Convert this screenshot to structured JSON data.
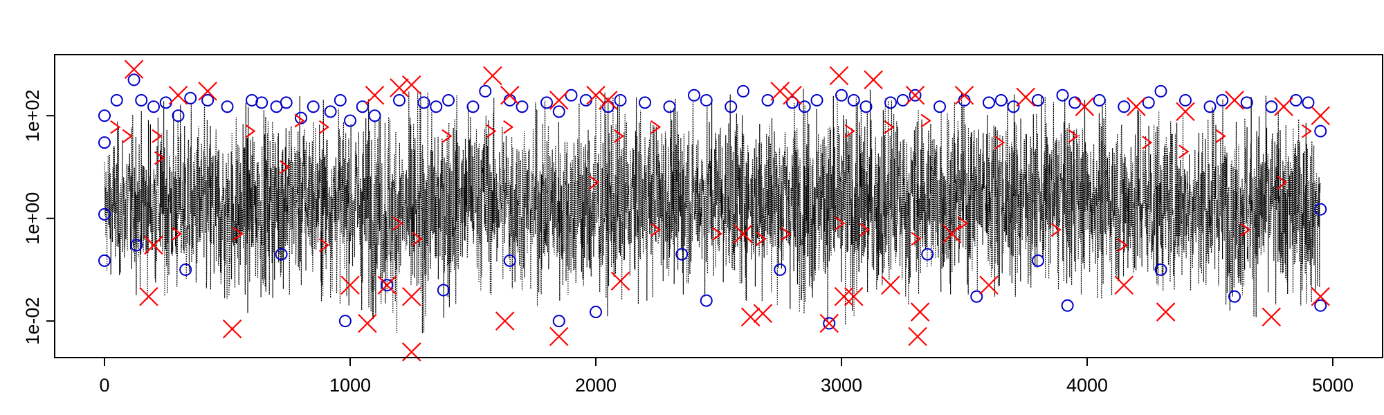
{
  "chart_data": {
    "type": "scatter",
    "title": "",
    "xlabel": "",
    "ylabel": "",
    "x_ticks": [
      "0",
      "1000",
      "2000",
      "3000",
      "4000",
      "5000"
    ],
    "x_tick_values": [
      0,
      1000,
      2000,
      3000,
      4000,
      5000
    ],
    "y_ticks": [
      "1e-02",
      "1e+00",
      "1e+02"
    ],
    "y_tick_values": [
      0.01,
      1,
      100
    ],
    "xlim": [
      -200,
      5200
    ],
    "ylim": [
      0.002,
      1500
    ],
    "y_scale": "log",
    "grid": false,
    "legend": "none",
    "n_points": 4950,
    "series": [
      {
        "name": "trace",
        "style": "dotted line",
        "color": "#000000",
        "envelope_note": "dense dotted black trace over x=0..4950; bulk between ~0.1 and ~100, spikes from ~0.003 to ~500",
        "envelope": [
          {
            "x": 0,
            "low": 0.05,
            "high": 60
          },
          {
            "x": 250,
            "low": 0.02,
            "high": 200
          },
          {
            "x": 500,
            "low": 0.01,
            "high": 150
          },
          {
            "x": 750,
            "low": 0.03,
            "high": 250
          },
          {
            "x": 1000,
            "low": 0.02,
            "high": 200
          },
          {
            "x": 1250,
            "low": 0.004,
            "high": 300
          },
          {
            "x": 1500,
            "low": 0.03,
            "high": 250
          },
          {
            "x": 1750,
            "low": 0.02,
            "high": 180
          },
          {
            "x": 2000,
            "low": 0.01,
            "high": 300
          },
          {
            "x": 2250,
            "low": 0.03,
            "high": 200
          },
          {
            "x": 2500,
            "low": 0.03,
            "high": 250
          },
          {
            "x": 2750,
            "low": 0.02,
            "high": 300
          },
          {
            "x": 3000,
            "low": 0.008,
            "high": 400
          },
          {
            "x": 3250,
            "low": 0.02,
            "high": 250
          },
          {
            "x": 3500,
            "low": 0.03,
            "high": 300
          },
          {
            "x": 3750,
            "low": 0.03,
            "high": 250
          },
          {
            "x": 4000,
            "low": 0.03,
            "high": 200
          },
          {
            "x": 4250,
            "low": 0.02,
            "high": 250
          },
          {
            "x": 4500,
            "low": 0.02,
            "high": 200
          },
          {
            "x": 4750,
            "low": 0.01,
            "high": 250
          },
          {
            "x": 4950,
            "low": 0.02,
            "high": 100
          }
        ]
      },
      {
        "name": "circles",
        "style": "open circle",
        "color": "#0000CC",
        "points": [
          [
            0,
            100
          ],
          [
            0,
            30
          ],
          [
            0,
            1.2
          ],
          [
            0,
            0.15
          ],
          [
            50,
            200
          ],
          [
            120,
            500
          ],
          [
            150,
            200
          ],
          [
            200,
            150
          ],
          [
            250,
            180
          ],
          [
            300,
            100
          ],
          [
            350,
            220
          ],
          [
            420,
            200
          ],
          [
            500,
            150
          ],
          [
            600,
            200
          ],
          [
            640,
            180
          ],
          [
            700,
            150
          ],
          [
            740,
            180
          ],
          [
            800,
            90
          ],
          [
            850,
            150
          ],
          [
            920,
            120
          ],
          [
            960,
            200
          ],
          [
            1000,
            80
          ],
          [
            1050,
            150
          ],
          [
            1100,
            100
          ],
          [
            1200,
            200
          ],
          [
            1300,
            180
          ],
          [
            1350,
            150
          ],
          [
            1400,
            200
          ],
          [
            1500,
            150
          ],
          [
            1550,
            300
          ],
          [
            1650,
            200
          ],
          [
            1700,
            150
          ],
          [
            1800,
            180
          ],
          [
            1850,
            120
          ],
          [
            1900,
            250
          ],
          [
            1960,
            200
          ],
          [
            2050,
            150
          ],
          [
            2100,
            200
          ],
          [
            2200,
            180
          ],
          [
            2300,
            150
          ],
          [
            2400,
            250
          ],
          [
            2450,
            200
          ],
          [
            2550,
            150
          ],
          [
            2600,
            300
          ],
          [
            2700,
            200
          ],
          [
            2800,
            180
          ],
          [
            2850,
            150
          ],
          [
            2900,
            200
          ],
          [
            3000,
            250
          ],
          [
            3050,
            200
          ],
          [
            3100,
            150
          ],
          [
            3200,
            180
          ],
          [
            3250,
            200
          ],
          [
            3300,
            250
          ],
          [
            3400,
            150
          ],
          [
            3500,
            200
          ],
          [
            3600,
            180
          ],
          [
            3650,
            200
          ],
          [
            3700,
            150
          ],
          [
            3800,
            200
          ],
          [
            3900,
            250
          ],
          [
            3950,
            180
          ],
          [
            4050,
            200
          ],
          [
            4150,
            150
          ],
          [
            4250,
            180
          ],
          [
            4300,
            300
          ],
          [
            4400,
            200
          ],
          [
            4500,
            150
          ],
          [
            4550,
            200
          ],
          [
            4650,
            180
          ],
          [
            4750,
            150
          ],
          [
            4850,
            200
          ],
          [
            4900,
            180
          ],
          [
            4950,
            50
          ],
          [
            4950,
            1.5
          ],
          [
            1850,
            0.01
          ],
          [
            980,
            0.01
          ],
          [
            2000,
            0.015
          ],
          [
            2450,
            0.025
          ],
          [
            2950,
            0.009
          ],
          [
            3550,
            0.03
          ],
          [
            4600,
            0.03
          ],
          [
            3920,
            0.02
          ],
          [
            1380,
            0.04
          ],
          [
            4950,
            0.02
          ],
          [
            130,
            0.3
          ],
          [
            330,
            0.1
          ],
          [
            720,
            0.2
          ],
          [
            1150,
            0.05
          ],
          [
            1650,
            0.15
          ],
          [
            2350,
            0.2
          ],
          [
            2750,
            0.1
          ],
          [
            3350,
            0.2
          ],
          [
            3800,
            0.15
          ],
          [
            4300,
            0.1
          ]
        ]
      },
      {
        "name": "crosses",
        "style": "x marker",
        "color": "#FF0000",
        "points": [
          [
            120,
            800
          ],
          [
            300,
            250
          ],
          [
            420,
            300
          ],
          [
            1100,
            250
          ],
          [
            1200,
            350
          ],
          [
            1250,
            400
          ],
          [
            1580,
            600
          ],
          [
            1650,
            250
          ],
          [
            1850,
            200
          ],
          [
            2000,
            250
          ],
          [
            2050,
            200
          ],
          [
            2750,
            300
          ],
          [
            2800,
            250
          ],
          [
            2990,
            600
          ],
          [
            3130,
            500
          ],
          [
            3300,
            250
          ],
          [
            3500,
            250
          ],
          [
            3750,
            230
          ],
          [
            3990,
            150
          ],
          [
            4200,
            150
          ],
          [
            4400,
            120
          ],
          [
            4600,
            200
          ],
          [
            4800,
            150
          ],
          [
            4950,
            100
          ],
          [
            520,
            0.007
          ],
          [
            1070,
            0.009
          ],
          [
            1250,
            0.0025
          ],
          [
            1630,
            0.01
          ],
          [
            1850,
            0.005
          ],
          [
            2630,
            0.012
          ],
          [
            2680,
            0.014
          ],
          [
            2950,
            0.009
          ],
          [
            3310,
            0.005
          ],
          [
            3320,
            0.015
          ],
          [
            4320,
            0.015
          ],
          [
            4750,
            0.012
          ],
          [
            180,
            0.03
          ],
          [
            1000,
            0.05
          ],
          [
            2100,
            0.06
          ],
          [
            3010,
            0.03
          ],
          [
            4950,
            0.03
          ],
          [
            3050,
            0.03
          ],
          [
            4150,
            0.05
          ],
          [
            1250,
            0.03
          ],
          [
            3600,
            0.05
          ],
          [
            1150,
            0.05
          ],
          [
            3200,
            0.05
          ],
          [
            200,
            0.3
          ],
          [
            2600,
            0.5
          ],
          [
            3450,
            0.5
          ]
        ]
      },
      {
        "name": "chevrons",
        "style": "right-angle marker",
        "color": "#FF0000",
        "points": [
          [
            50,
            60
          ],
          [
            100,
            40
          ],
          [
            220,
            40
          ],
          [
            230,
            15
          ],
          [
            600,
            50
          ],
          [
            740,
            10
          ],
          [
            1580,
            50
          ],
          [
            1650,
            60
          ],
          [
            2000,
            5
          ],
          [
            2100,
            40
          ],
          [
            2250,
            60
          ],
          [
            3040,
            50
          ],
          [
            3200,
            60
          ],
          [
            3350,
            80
          ],
          [
            3950,
            40
          ],
          [
            4250,
            30
          ],
          [
            4400,
            20
          ],
          [
            4550,
            40
          ],
          [
            4800,
            5
          ],
          [
            4900,
            50
          ],
          [
            800,
            80
          ],
          [
            900,
            60
          ],
          [
            1400,
            40
          ],
          [
            3650,
            30
          ],
          [
            2250,
            0.6
          ],
          [
            3000,
            0.8
          ],
          [
            3100,
            0.6
          ],
          [
            2500,
            0.5
          ],
          [
            1200,
            0.8
          ],
          [
            1280,
            0.4
          ],
          [
            550,
            0.5
          ],
          [
            900,
            0.3
          ],
          [
            3880,
            0.6
          ],
          [
            4150,
            0.3
          ],
          [
            3500,
            0.8
          ],
          [
            2680,
            0.4
          ],
          [
            2780,
            0.5
          ],
          [
            3310,
            0.4
          ],
          [
            4650,
            0.6
          ],
          [
            300,
            0.5
          ]
        ]
      }
    ]
  }
}
